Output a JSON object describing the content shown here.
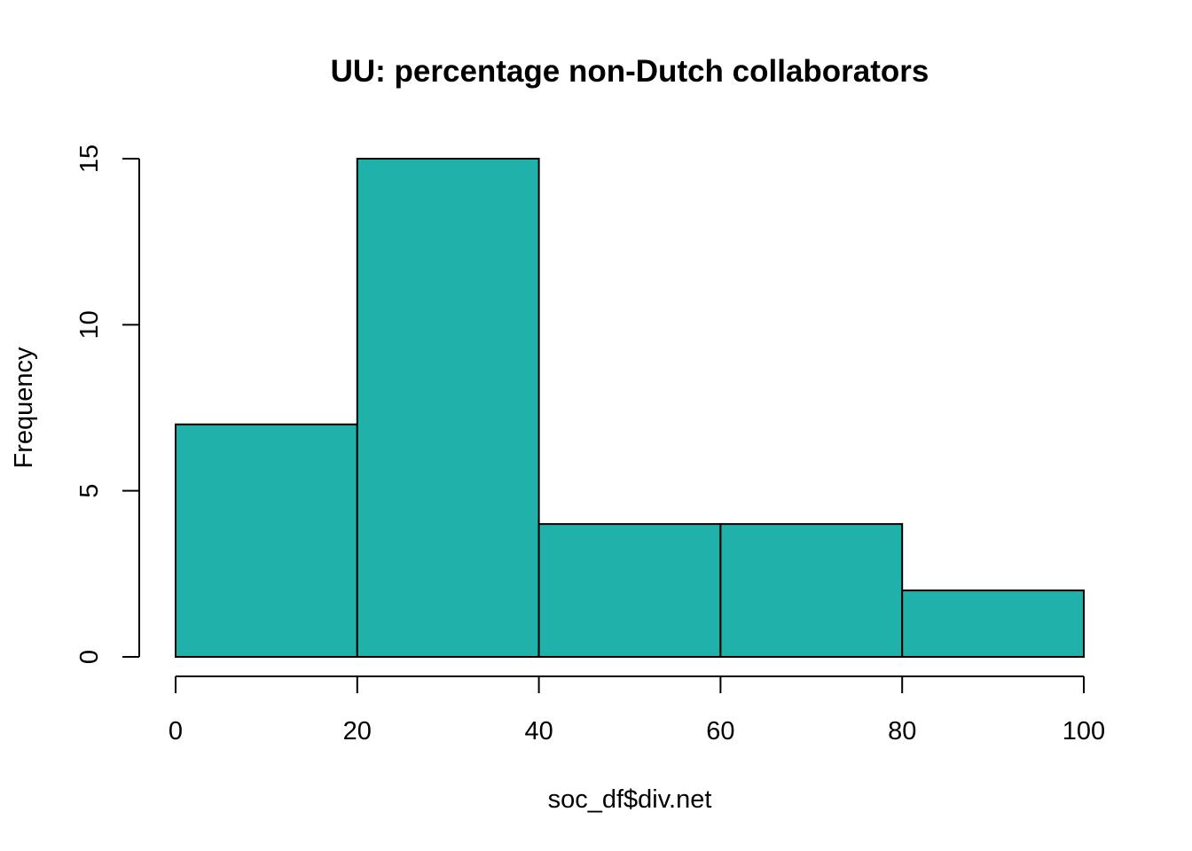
{
  "chart_data": {
    "type": "bar",
    "subtype": "histogram",
    "title": "UU: percentage non-Dutch collaborators",
    "xlabel": "soc_df$div.net",
    "ylabel": "Frequency",
    "bins": [
      {
        "from": 0,
        "to": 20,
        "count": 7
      },
      {
        "from": 20,
        "to": 40,
        "count": 15
      },
      {
        "from": 40,
        "to": 60,
        "count": 4
      },
      {
        "from": 60,
        "to": 80,
        "count": 4
      },
      {
        "from": 80,
        "to": 100,
        "count": 2
      }
    ],
    "xlim": [
      0,
      100
    ],
    "ylim": [
      0,
      15
    ],
    "x_ticks": [
      "0",
      "20",
      "40",
      "60",
      "80",
      "100"
    ],
    "y_ticks": [
      "0",
      "5",
      "10",
      "15"
    ],
    "bar_color": "#20B2AA",
    "grid": false,
    "legend": "none"
  }
}
